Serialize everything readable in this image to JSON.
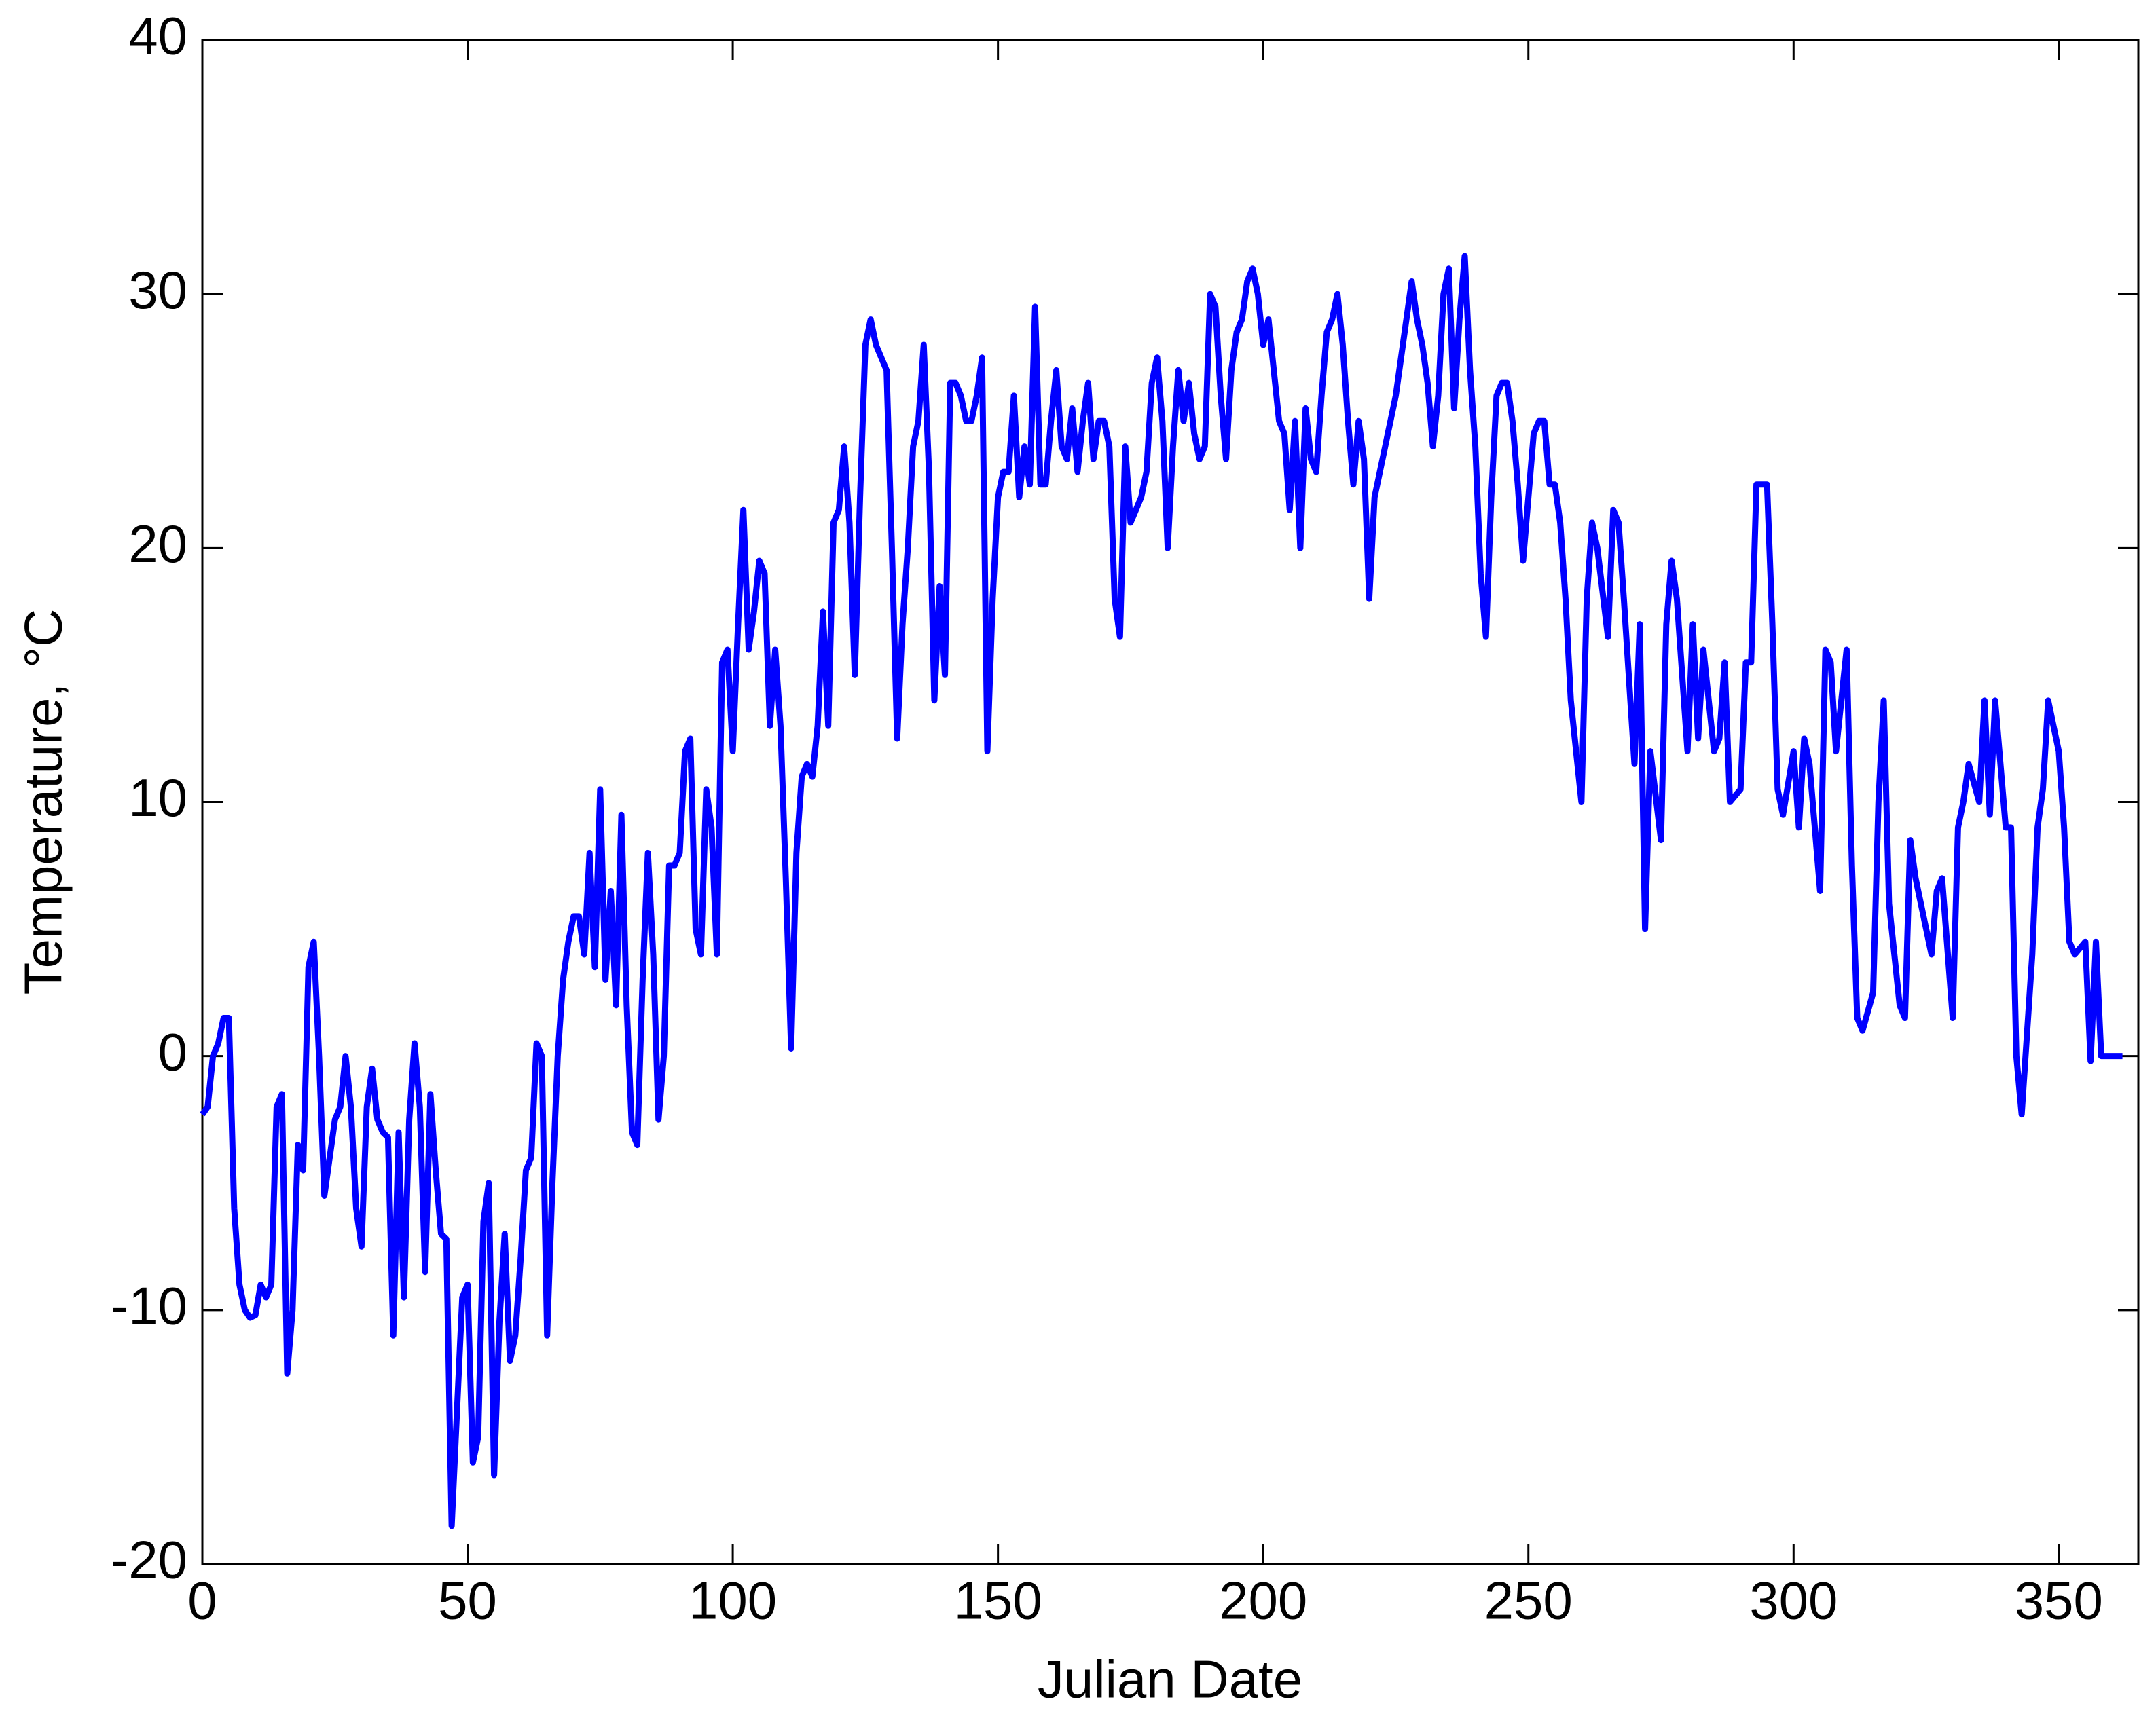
{
  "chart_data": {
    "type": "line",
    "xlabel": "Julian Date",
    "ylabel": "Temperature, °C",
    "color": "#0000ff",
    "xlim": [
      0,
      365
    ],
    "xticks": [
      0,
      50,
      100,
      150,
      200,
      250,
      300,
      350
    ],
    "ylim": [
      -20,
      40
    ],
    "yticks": [
      -20,
      -10,
      0,
      10,
      20,
      30,
      40
    ],
    "grid": false,
    "x": [
      0,
      1,
      2,
      3,
      4,
      5,
      6,
      7,
      8,
      9,
      10,
      11,
      12,
      13,
      14,
      15,
      16,
      17,
      18,
      19,
      20,
      21,
      22,
      23,
      24,
      25,
      26,
      27,
      28,
      29,
      30,
      31,
      32,
      33,
      34,
      35,
      36,
      37,
      38,
      39,
      40,
      41,
      42,
      43,
      44,
      45,
      46,
      47,
      48,
      49,
      50,
      51,
      52,
      53,
      54,
      55,
      56,
      57,
      58,
      59,
      60,
      61,
      62,
      63,
      64,
      65,
      66,
      67,
      68,
      69,
      70,
      71,
      72,
      73,
      74,
      75,
      76,
      77,
      78,
      79,
      80,
      81,
      82,
      83,
      84,
      85,
      86,
      87,
      88,
      89,
      90,
      91,
      92,
      93,
      94,
      95,
      96,
      97,
      98,
      99,
      100,
      101,
      102,
      103,
      104,
      105,
      106,
      107,
      108,
      109,
      110,
      111,
      112,
      113,
      114,
      115,
      116,
      117,
      118,
      119,
      120,
      121,
      122,
      123,
      124,
      125,
      126,
      127,
      128,
      129,
      130,
      131,
      132,
      133,
      134,
      135,
      136,
      137,
      138,
      139,
      140,
      141,
      142,
      143,
      144,
      145,
      146,
      147,
      148,
      149,
      150,
      151,
      152,
      153,
      154,
      155,
      156,
      157,
      158,
      159,
      160,
      161,
      162,
      163,
      164,
      165,
      166,
      167,
      168,
      169,
      170,
      171,
      172,
      173,
      174,
      175,
      176,
      177,
      178,
      179,
      180,
      181,
      182,
      183,
      184,
      185,
      186,
      187,
      188,
      189,
      190,
      191,
      192,
      193,
      194,
      195,
      196,
      197,
      198,
      199,
      200,
      201,
      202,
      203,
      204,
      205,
      206,
      207,
      208,
      209,
      210,
      211,
      212,
      213,
      214,
      215,
      216,
      217,
      218,
      219,
      220,
      221,
      222,
      223,
      224,
      225,
      226,
      227,
      228,
      229,
      230,
      231,
      232,
      233,
      234,
      235,
      236,
      237,
      238,
      239,
      240,
      241,
      242,
      243,
      244,
      245,
      246,
      247,
      248,
      249,
      250,
      251,
      252,
      253,
      254,
      255,
      256,
      257,
      258,
      260,
      261,
      262,
      263,
      265,
      266,
      267,
      268,
      270,
      271,
      272,
      273,
      275,
      276,
      277,
      278,
      280,
      281,
      282,
      283,
      285,
      286,
      287,
      288,
      290,
      291,
      292,
      293,
      295,
      296,
      297,
      298,
      300,
      301,
      302,
      303,
      305,
      306,
      307,
      308,
      310,
      311,
      312,
      313,
      315,
      316,
      317,
      318,
      320,
      321,
      322,
      323,
      325,
      326,
      327,
      328,
      330,
      331,
      332,
      333,
      335,
      336,
      337,
      338,
      340,
      341,
      342,
      343,
      345,
      346,
      347,
      348,
      350,
      351,
      352,
      353,
      355,
      356,
      357,
      358,
      360,
      362
    ],
    "values": [
      -2.3,
      -2,
      0,
      0.5,
      1.5,
      1.5,
      -6,
      -9,
      -10,
      -10.3,
      -10.2,
      -9,
      -9.5,
      -9,
      -2,
      -1.5,
      -12.5,
      -10,
      -3.5,
      -4.5,
      3.5,
      4.5,
      0,
      -5.5,
      -4,
      -2.5,
      -2,
      0,
      -2,
      -6,
      -7.5,
      -2,
      -0.5,
      -2.5,
      -3,
      -3.2,
      -11,
      -3,
      -9.5,
      -2.5,
      0.5,
      -2,
      -8.5,
      -1.5,
      -4.5,
      -7,
      -7.2,
      -18.5,
      -14,
      -9.5,
      -9,
      -16,
      -15,
      -6.5,
      -5,
      -16.5,
      -10.5,
      -7,
      -12,
      -11,
      -8,
      -4.5,
      -4,
      0.5,
      0,
      -11,
      -5,
      0,
      3,
      4.5,
      5.5,
      5.5,
      4,
      8,
      3.5,
      10.5,
      3,
      6.5,
      2,
      9.5,
      2,
      -3,
      -3.5,
      3,
      8,
      4,
      -2.5,
      0,
      7.5,
      7.5,
      8,
      12,
      12.5,
      5,
      4,
      10.5,
      9,
      4,
      15.5,
      16,
      12,
      17,
      21.5,
      16,
      17.5,
      19.5,
      19,
      13,
      16,
      13,
      7,
      0.3,
      8,
      11,
      11.5,
      11,
      13,
      17.5,
      13,
      21,
      21.5,
      24,
      21,
      15,
      22,
      28,
      29,
      28,
      27.5,
      27,
      20,
      12.5,
      17,
      20,
      24,
      25,
      28,
      23,
      14,
      18.5,
      15,
      26.5,
      26.5,
      26,
      25,
      25,
      26,
      27.5,
      12,
      18,
      22,
      23,
      23,
      26,
      22,
      24,
      22.5,
      29.5,
      22.5,
      22.5,
      25,
      27,
      24,
      23.5,
      25.5,
      23,
      25,
      26.5,
      23.5,
      25,
      25,
      24,
      18,
      16.5,
      24,
      21,
      21.5,
      22,
      23,
      26.5,
      27.5,
      25,
      20,
      24,
      27,
      25,
      26.5,
      24.5,
      23.5,
      24,
      30,
      29.5,
      26,
      23.5,
      27,
      28.5,
      29,
      30.5,
      31,
      30,
      28,
      29,
      27,
      25,
      24.5,
      21.5,
      25,
      20,
      25.5,
      23.5,
      23,
      26,
      28.5,
      29,
      30,
      28,
      25,
      22.5,
      25,
      23.5,
      18,
      22,
      23,
      24,
      25,
      26,
      27.5,
      29,
      30.5,
      29,
      28,
      26.5,
      24,
      26,
      30,
      31,
      25.5,
      29,
      31.5,
      27,
      24,
      19,
      16.5,
      22,
      26,
      26.5,
      26.5,
      25,
      22.5,
      19.5,
      22,
      24.5,
      25,
      25,
      22.5,
      22.5,
      21,
      18,
      14,
      10,
      18,
      21,
      20,
      16.5,
      21.5,
      21,
      18,
      11.5,
      17,
      5,
      12,
      8.5,
      17,
      19.5,
      18,
      12,
      17,
      12.5,
      16,
      12,
      12.5,
      15.5,
      10,
      10.5,
      15.5,
      15.5,
      22.5,
      22.5,
      17,
      10.5,
      9.5,
      12,
      9,
      12.5,
      11.5,
      6.5,
      16,
      15.5,
      12,
      16,
      7.5,
      1.5,
      1,
      2.5,
      10,
      14,
      6,
      2,
      1.5,
      8.5,
      7,
      5,
      4,
      6.5,
      7,
      1.5,
      9,
      10,
      11.5,
      10,
      14,
      9.5,
      14,
      9,
      9,
      0,
      -2.3,
      4,
      9,
      10.5,
      14,
      12,
      9,
      4.5,
      4,
      4.5,
      -0.2,
      4.5,
      0,
      0,
      0
    ]
  }
}
